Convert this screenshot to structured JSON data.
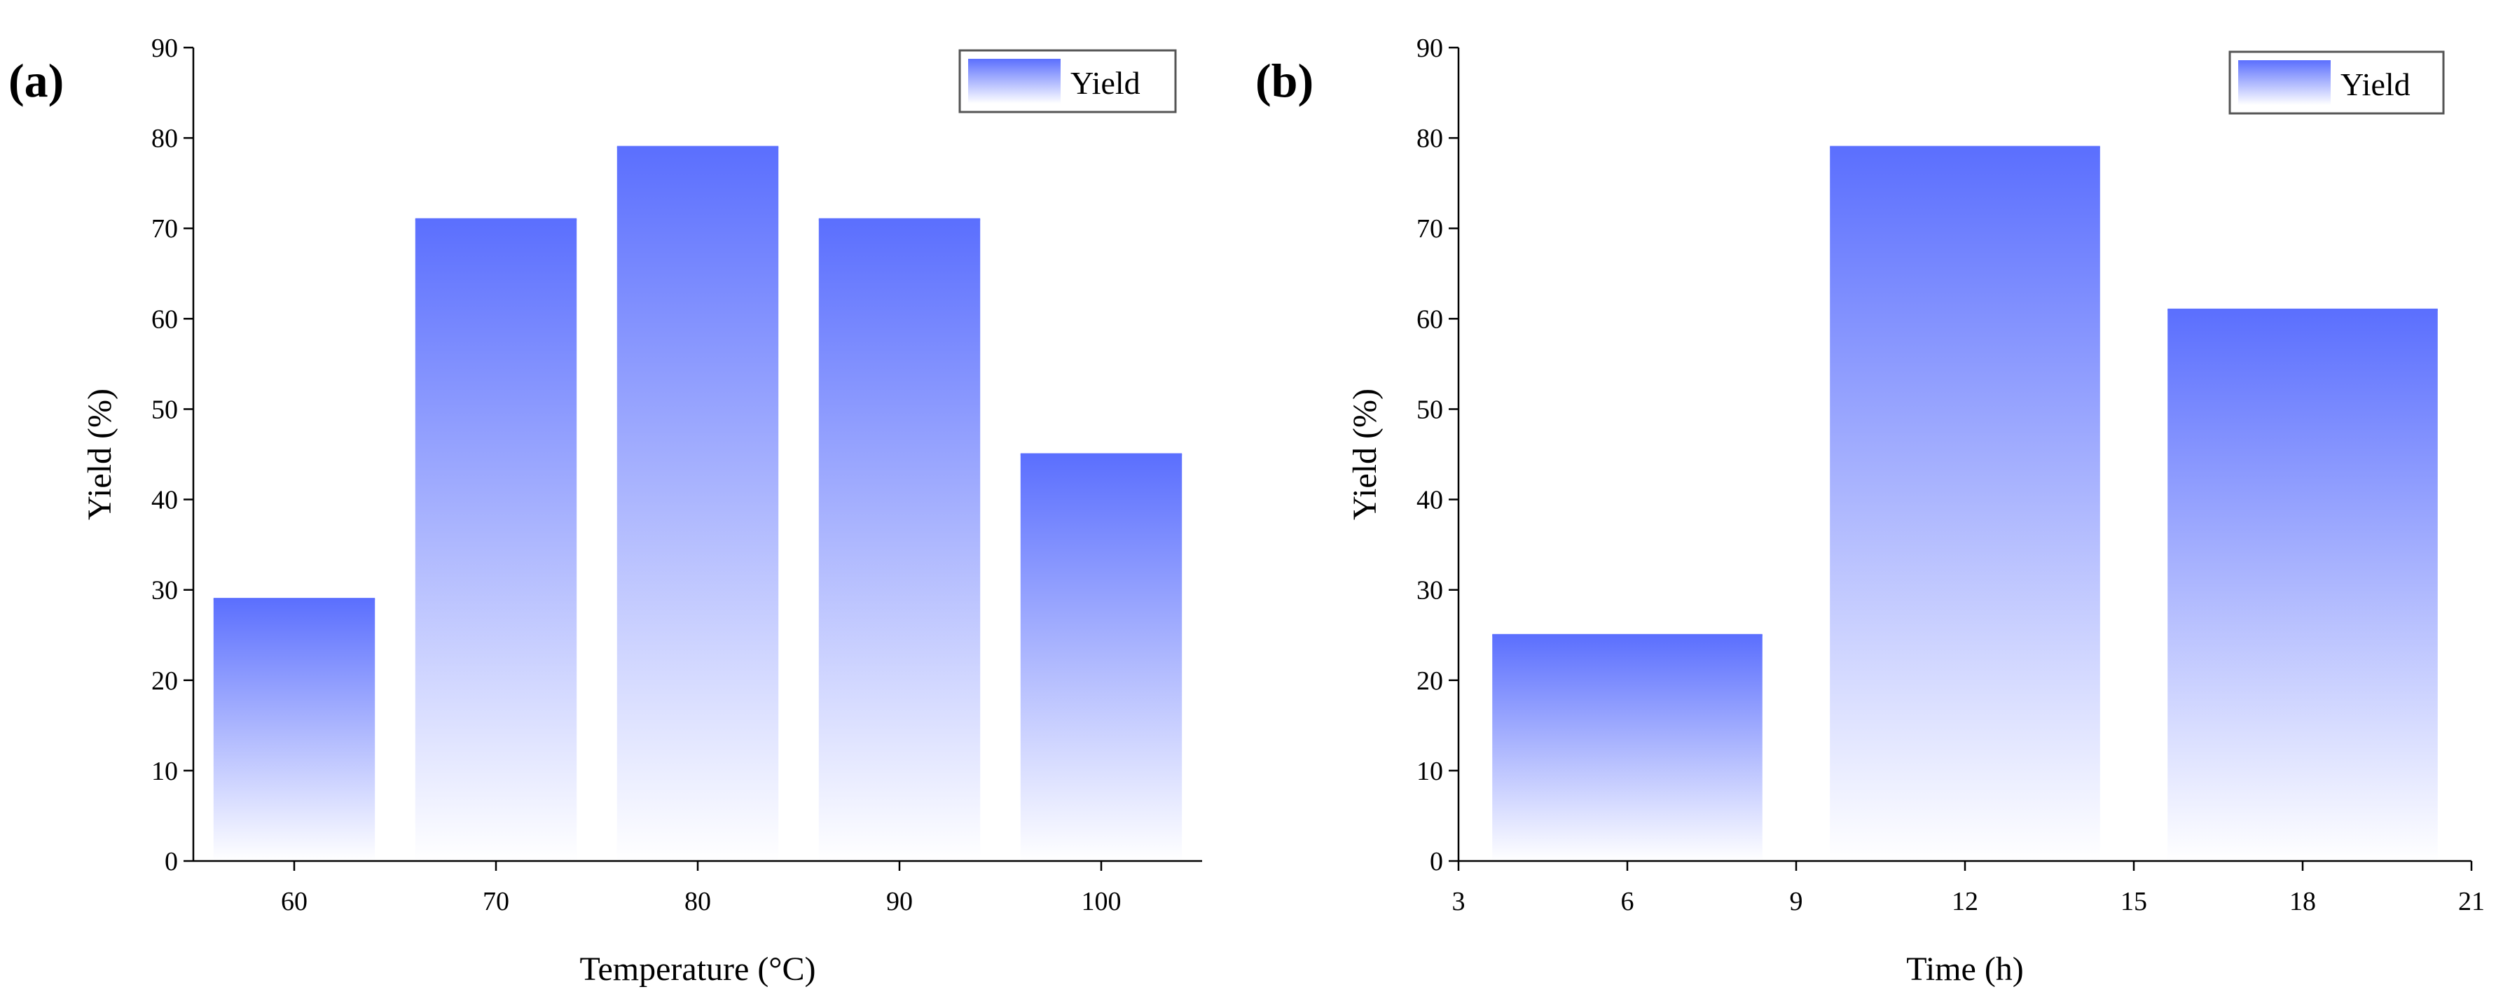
{
  "colors": {
    "bar_top": "#5b6ffe",
    "bar_bottom": "#ffffff",
    "axis": "#000000",
    "legend_border": "#555555"
  },
  "chart_data": [
    {
      "panel_label": "(a)",
      "type": "bar",
      "xlabel": "Temperature (°C)",
      "ylabel": "Yield (%)",
      "categories": [
        "60",
        "70",
        "80",
        "90",
        "100"
      ],
      "values": [
        29,
        71,
        79,
        71,
        45
      ],
      "ylim": [
        0,
        90
      ],
      "yticks": [
        0,
        10,
        20,
        30,
        40,
        50,
        60,
        70,
        80,
        90
      ],
      "legend": "Yield",
      "legend_position": "top-right",
      "grid": false
    },
    {
      "panel_label": "(b)",
      "type": "bar",
      "xlabel": "Time (h)",
      "ylabel": "Yield (%)",
      "x": [
        6,
        12,
        18
      ],
      "values": [
        25,
        79,
        61
      ],
      "xlim": [
        3,
        21
      ],
      "xticks": [
        3,
        6,
        9,
        12,
        15,
        18,
        21
      ],
      "ylim": [
        0,
        90
      ],
      "yticks": [
        0,
        10,
        20,
        30,
        40,
        50,
        60,
        70,
        80,
        90
      ],
      "legend": "Yield",
      "legend_position": "top-right",
      "grid": false
    }
  ]
}
